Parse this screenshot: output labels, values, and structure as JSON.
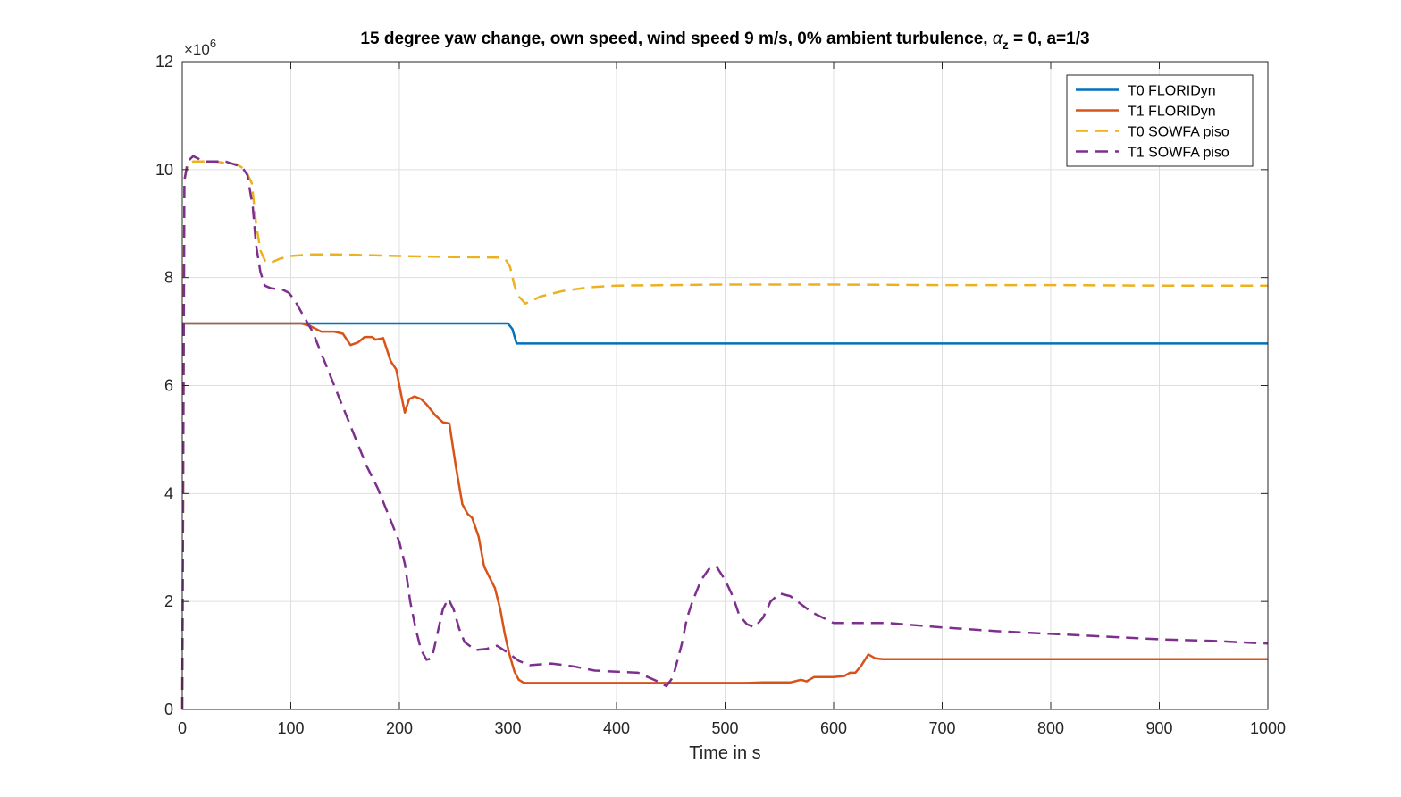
{
  "chart_data": {
    "type": "line",
    "title_prefix": "15 degree yaw change, own speed, wind speed 9 m/s, 0% ambient turbulence, ",
    "title_symbol": "α",
    "title_subscript": "z",
    "title_suffix": " = 0, a=1/3",
    "xlabel": "Time in s",
    "ylabel": "",
    "y_multiplier": "×10",
    "y_multiplier_exponent": "6",
    "xlim": [
      0,
      1000
    ],
    "ylim": [
      0,
      12
    ],
    "xticks": [
      0,
      100,
      200,
      300,
      400,
      500,
      600,
      700,
      800,
      900,
      1000
    ],
    "yticks": [
      0,
      2,
      4,
      6,
      8,
      10,
      12
    ],
    "grid": true,
    "legend_position": "top-right",
    "series": [
      {
        "name": "T0 FLORIDyn",
        "color": "#0072BD",
        "dash": "solid",
        "points": [
          [
            0,
            7.15
          ],
          [
            100,
            7.15
          ],
          [
            200,
            7.15
          ],
          [
            300,
            7.15
          ],
          [
            304,
            7.05
          ],
          [
            308,
            6.78
          ],
          [
            400,
            6.78
          ],
          [
            500,
            6.78
          ],
          [
            600,
            6.78
          ],
          [
            700,
            6.78
          ],
          [
            800,
            6.78
          ],
          [
            900,
            6.78
          ],
          [
            1000,
            6.78
          ]
        ]
      },
      {
        "name": "T1 FLORIDyn",
        "color": "#D95319",
        "dash": "solid",
        "points": [
          [
            0,
            7.15
          ],
          [
            50,
            7.15
          ],
          [
            100,
            7.15
          ],
          [
            110,
            7.15
          ],
          [
            118,
            7.1
          ],
          [
            128,
            7.0
          ],
          [
            140,
            7.0
          ],
          [
            148,
            6.96
          ],
          [
            155,
            6.75
          ],
          [
            162,
            6.8
          ],
          [
            168,
            6.9
          ],
          [
            175,
            6.9
          ],
          [
            178,
            6.85
          ],
          [
            185,
            6.88
          ],
          [
            192,
            6.45
          ],
          [
            197,
            6.3
          ],
          [
            203,
            5.7
          ],
          [
            205,
            5.5
          ],
          [
            209,
            5.75
          ],
          [
            214,
            5.8
          ],
          [
            220,
            5.75
          ],
          [
            225,
            5.65
          ],
          [
            233,
            5.45
          ],
          [
            240,
            5.32
          ],
          [
            246,
            5.3
          ],
          [
            252,
            4.5
          ],
          [
            258,
            3.8
          ],
          [
            263,
            3.62
          ],
          [
            267,
            3.55
          ],
          [
            273,
            3.2
          ],
          [
            278,
            2.65
          ],
          [
            283,
            2.45
          ],
          [
            288,
            2.25
          ],
          [
            293,
            1.85
          ],
          [
            297,
            1.4
          ],
          [
            301,
            1.05
          ],
          [
            306,
            0.7
          ],
          [
            310,
            0.55
          ],
          [
            315,
            0.49
          ],
          [
            330,
            0.49
          ],
          [
            400,
            0.49
          ],
          [
            450,
            0.49
          ],
          [
            500,
            0.49
          ],
          [
            520,
            0.49
          ],
          [
            535,
            0.5
          ],
          [
            550,
            0.5
          ],
          [
            560,
            0.5
          ],
          [
            570,
            0.55
          ],
          [
            575,
            0.52
          ],
          [
            582,
            0.6
          ],
          [
            600,
            0.6
          ],
          [
            610,
            0.62
          ],
          [
            615,
            0.68
          ],
          [
            620,
            0.68
          ],
          [
            625,
            0.8
          ],
          [
            632,
            1.02
          ],
          [
            638,
            0.95
          ],
          [
            645,
            0.93
          ],
          [
            700,
            0.93
          ],
          [
            800,
            0.93
          ],
          [
            900,
            0.93
          ],
          [
            1000,
            0.93
          ]
        ]
      },
      {
        "name": "T0 SOWFA piso",
        "color": "#EDB120",
        "dash": "dashed",
        "points": [
          [
            0,
            0
          ],
          [
            2,
            9.8
          ],
          [
            5,
            10.1
          ],
          [
            10,
            10.15
          ],
          [
            30,
            10.15
          ],
          [
            50,
            10.1
          ],
          [
            58,
            10.0
          ],
          [
            64,
            9.75
          ],
          [
            68,
            9.0
          ],
          [
            72,
            8.5
          ],
          [
            77,
            8.28
          ],
          [
            82,
            8.28
          ],
          [
            90,
            8.35
          ],
          [
            100,
            8.4
          ],
          [
            120,
            8.43
          ],
          [
            140,
            8.43
          ],
          [
            160,
            8.42
          ],
          [
            200,
            8.4
          ],
          [
            250,
            8.38
          ],
          [
            290,
            8.37
          ],
          [
            297,
            8.36
          ],
          [
            302,
            8.2
          ],
          [
            306,
            7.85
          ],
          [
            310,
            7.65
          ],
          [
            316,
            7.52
          ],
          [
            320,
            7.55
          ],
          [
            330,
            7.65
          ],
          [
            350,
            7.75
          ],
          [
            375,
            7.82
          ],
          [
            400,
            7.85
          ],
          [
            450,
            7.86
          ],
          [
            500,
            7.87
          ],
          [
            550,
            7.87
          ],
          [
            600,
            7.87
          ],
          [
            700,
            7.86
          ],
          [
            800,
            7.86
          ],
          [
            900,
            7.85
          ],
          [
            1000,
            7.85
          ]
        ]
      },
      {
        "name": "T1 SOWFA piso",
        "color": "#7E2F8E",
        "dash": "dashed",
        "points": [
          [
            0,
            0
          ],
          [
            2,
            9.8
          ],
          [
            5,
            10.15
          ],
          [
            10,
            10.25
          ],
          [
            20,
            10.15
          ],
          [
            40,
            10.15
          ],
          [
            55,
            10.05
          ],
          [
            60,
            9.9
          ],
          [
            65,
            9.3
          ],
          [
            68,
            8.6
          ],
          [
            72,
            8.1
          ],
          [
            76,
            7.85
          ],
          [
            82,
            7.8
          ],
          [
            92,
            7.78
          ],
          [
            98,
            7.72
          ],
          [
            103,
            7.6
          ],
          [
            110,
            7.35
          ],
          [
            120,
            7.0
          ],
          [
            130,
            6.5
          ],
          [
            140,
            6.0
          ],
          [
            150,
            5.5
          ],
          [
            160,
            5.0
          ],
          [
            170,
            4.5
          ],
          [
            180,
            4.1
          ],
          [
            190,
            3.6
          ],
          [
            200,
            3.1
          ],
          [
            205,
            2.7
          ],
          [
            210,
            2.0
          ],
          [
            215,
            1.5
          ],
          [
            220,
            1.1
          ],
          [
            225,
            0.92
          ],
          [
            230,
            0.95
          ],
          [
            235,
            1.4
          ],
          [
            240,
            1.85
          ],
          [
            245,
            2.05
          ],
          [
            250,
            1.85
          ],
          [
            255,
            1.5
          ],
          [
            260,
            1.25
          ],
          [
            270,
            1.1
          ],
          [
            280,
            1.12
          ],
          [
            290,
            1.18
          ],
          [
            300,
            1.05
          ],
          [
            310,
            0.9
          ],
          [
            320,
            0.82
          ],
          [
            340,
            0.85
          ],
          [
            360,
            0.8
          ],
          [
            380,
            0.72
          ],
          [
            400,
            0.7
          ],
          [
            420,
            0.68
          ],
          [
            440,
            0.5
          ],
          [
            446,
            0.43
          ],
          [
            452,
            0.6
          ],
          [
            460,
            1.2
          ],
          [
            465,
            1.7
          ],
          [
            470,
            2.0
          ],
          [
            478,
            2.4
          ],
          [
            485,
            2.6
          ],
          [
            492,
            2.65
          ],
          [
            500,
            2.4
          ],
          [
            507,
            2.1
          ],
          [
            513,
            1.75
          ],
          [
            520,
            1.58
          ],
          [
            527,
            1.52
          ],
          [
            535,
            1.7
          ],
          [
            542,
            2.0
          ],
          [
            550,
            2.15
          ],
          [
            560,
            2.1
          ],
          [
            570,
            1.95
          ],
          [
            580,
            1.8
          ],
          [
            590,
            1.7
          ],
          [
            600,
            1.6
          ],
          [
            620,
            1.6
          ],
          [
            650,
            1.6
          ],
          [
            700,
            1.52
          ],
          [
            750,
            1.45
          ],
          [
            800,
            1.4
          ],
          [
            850,
            1.35
          ],
          [
            900,
            1.3
          ],
          [
            950,
            1.27
          ],
          [
            1000,
            1.22
          ]
        ]
      }
    ]
  }
}
